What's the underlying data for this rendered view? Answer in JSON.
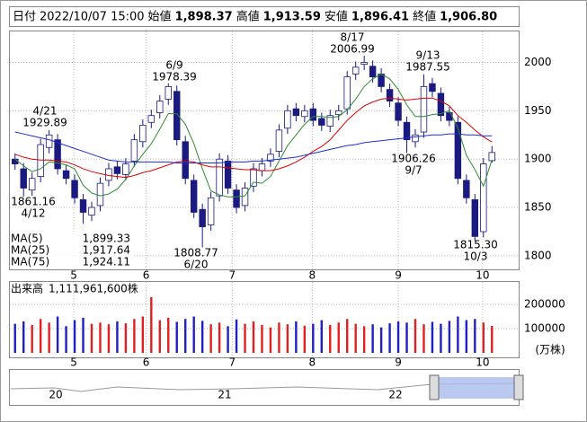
{
  "header": {
    "date_label": "日付",
    "datetime": "2022/10/07 15:00",
    "items": [
      {
        "label": "始値",
        "value": "1,898.37",
        "color": "#000000"
      },
      {
        "label": "高値",
        "value": "1,913.59",
        "color": "#e00000"
      },
      {
        "label": "安値",
        "value": "1,896.41",
        "color": "#008000"
      },
      {
        "label": "終値",
        "value": "1,906.80",
        "color": "#000000"
      }
    ]
  },
  "chart_data": [
    {
      "type": "candlestick",
      "up_color": "#ffffff",
      "down_color": "#1a1a80",
      "edge_color": "#1a1a80",
      "open": [
        1900,
        1890,
        1868,
        1882,
        1912,
        1920,
        1888,
        1878,
        1858,
        1842,
        1852,
        1878,
        1892,
        1884,
        1898,
        1918,
        1938,
        1948,
        1962,
        1970,
        1918,
        1878,
        1848,
        1832,
        1862,
        1898,
        1868,
        1852,
        1872,
        1888,
        1898,
        1908,
        1932,
        1952,
        1944,
        1952,
        1942,
        1934,
        1946,
        1952,
        1988,
        1998,
        1996,
        1988,
        1972,
        1958,
        1938,
        1918,
        1928,
        1978,
        1968,
        1948,
        1938,
        1878,
        1858,
        1825,
        1898.37
      ],
      "high": [
        1906,
        1896,
        1886,
        1921,
        1929.89,
        1926,
        1894,
        1884,
        1864,
        1856,
        1881,
        1896,
        1898,
        1901,
        1926,
        1941,
        1951,
        1966,
        1978.39,
        1976,
        1924,
        1884,
        1854,
        1866,
        1906,
        1904,
        1874,
        1876,
        1896,
        1901,
        1911,
        1936,
        1956,
        1958,
        1956,
        1958,
        1948,
        1951,
        1956,
        1991,
        2001,
        2006.99,
        2002,
        1994,
        1978,
        1964,
        1944,
        1931,
        1987.55,
        1984,
        1974,
        1954,
        1944,
        1884,
        1864,
        1901,
        1913.59
      ],
      "low": [
        1889,
        1861.16,
        1862,
        1876,
        1906,
        1884,
        1874,
        1854,
        1833.31,
        1836,
        1846,
        1872,
        1879,
        1878,
        1892,
        1912,
        1932,
        1942,
        1956,
        1914,
        1874,
        1839,
        1808.77,
        1826,
        1856,
        1864,
        1844,
        1846,
        1866,
        1882,
        1892,
        1902,
        1926,
        1939,
        1938,
        1934,
        1929,
        1928,
        1940,
        1946,
        1982,
        1992,
        1979,
        1969,
        1954,
        1934,
        1906.26,
        1912,
        1922,
        1964,
        1939,
        1934,
        1874,
        1854,
        1815.3,
        1819,
        1896.41
      ],
      "close": [
        1895,
        1870,
        1880,
        1915,
        1925,
        1890,
        1880,
        1860,
        1845,
        1850,
        1875,
        1890,
        1885,
        1895,
        1920,
        1935,
        1945,
        1960,
        1975,
        1920,
        1880,
        1845,
        1830,
        1860,
        1900,
        1870,
        1850,
        1870,
        1890,
        1895,
        1905,
        1930,
        1950,
        1945,
        1950,
        1940,
        1935,
        1945,
        1950,
        1985,
        1995,
        2000,
        1985,
        1975,
        1960,
        1940,
        1920,
        1925,
        1975,
        1970,
        1945,
        1940,
        1880,
        1860,
        1820,
        1895,
        1906.8
      ],
      "series": [
        {
          "name": "MA(5)",
          "color": "#2e8b2e",
          "last_label": "1,899.33",
          "values": [
            1900,
            1893,
            1887,
            1890,
            1897,
            1896,
            1894,
            1890,
            1873,
            1865,
            1862,
            1864,
            1869,
            1879,
            1893,
            1905,
            1916,
            1931,
            1947,
            1947,
            1936,
            1916,
            1890,
            1867,
            1863,
            1861,
            1861,
            1862,
            1876,
            1875,
            1882,
            1898,
            1914,
            1925,
            1936,
            1944,
            1944,
            1943,
            1944,
            1951,
            1962,
            1975,
            1983,
            1988,
            1983,
            1972,
            1956,
            1944,
            1944,
            1946,
            1947,
            1950,
            1932,
            1904,
            1889,
            1872,
            1899.33
          ]
        },
        {
          "name": "MA(25)",
          "color": "#e00000",
          "last_label": "1,917.64",
          "values": [
            1905,
            1902,
            1900,
            1899,
            1899,
            1898,
            1897,
            1894,
            1890,
            1887,
            1885,
            1883,
            1882,
            1881,
            1883,
            1886,
            1888,
            1891,
            1894,
            1897,
            1898,
            1897,
            1894,
            1892,
            1892,
            1891,
            1890,
            1889,
            1889,
            1888,
            1888,
            1890,
            1893,
            1897,
            1902,
            1908,
            1913,
            1920,
            1930,
            1940,
            1948,
            1955,
            1959,
            1962,
            1963,
            1962,
            1961,
            1962,
            1963,
            1963,
            1960,
            1955,
            1945,
            1938,
            1930,
            1923,
            1917.64
          ]
        },
        {
          "name": "MA(75)",
          "color": "#1f2fd0",
          "last_label": "1,924.11",
          "values": [
            1928,
            1926,
            1924,
            1922,
            1920,
            1917,
            1914,
            1911,
            1908,
            1905,
            1902,
            1899,
            1898,
            1897,
            1897,
            1897,
            1897,
            1897,
            1897,
            1896,
            1896,
            1896,
            1896,
            1896,
            1896,
            1897,
            1897,
            1897,
            1898,
            1898,
            1899,
            1900,
            1901,
            1902,
            1904,
            1906,
            1908,
            1910,
            1912,
            1914,
            1915,
            1917,
            1918,
            1919,
            1920,
            1921,
            1922,
            1923,
            1924,
            1925,
            1925,
            1926,
            1926,
            1925,
            1925,
            1924,
            1924.11
          ]
        }
      ],
      "ylim": [
        1786,
        2032
      ],
      "yticks": [
        1800,
        1850,
        1900,
        1950,
        2000
      ],
      "xticks": [
        {
          "value": 6.9,
          "label": "5"
        },
        {
          "value": 15.4,
          "label": "6"
        },
        {
          "value": 25.5,
          "label": "7"
        },
        {
          "value": 34.9,
          "label": "8"
        },
        {
          "value": 45.0,
          "label": "9"
        },
        {
          "value": 54.9,
          "label": "10"
        }
      ],
      "grid": true,
      "annotations": [
        {
          "date": "4/21",
          "price": "1929.89"
        },
        {
          "date": "4/12",
          "price": "1861.16"
        },
        {
          "date": "6/9",
          "price": "1978.39"
        },
        {
          "date": "6/20",
          "price": "1808.77"
        },
        {
          "date": "8/17",
          "price": "2006.99"
        },
        {
          "date": "9/13",
          "price": "1987.55"
        },
        {
          "date": "9/7",
          "price": "1906.26"
        },
        {
          "date": "10/3",
          "price": "1815.30"
        }
      ]
    },
    {
      "type": "bar",
      "title": "出来高",
      "total": "1,111,961,600株",
      "unit": "(万株)",
      "up_color": "#e02020",
      "down_color": "#2020c0",
      "values": [
        120000,
        130000,
        115000,
        140000,
        125000,
        150000,
        110000,
        135000,
        145000,
        120000,
        125000,
        118000,
        130000,
        122000,
        140000,
        150000,
        230000,
        135000,
        145000,
        128000,
        140000,
        150000,
        132000,
        118000,
        125000,
        110000,
        138000,
        120000,
        130000,
        115000,
        105000,
        125000,
        118000,
        130000,
        112000,
        120000,
        135000,
        115000,
        125000,
        140000,
        120000,
        110000,
        118000,
        105000,
        122000,
        130000,
        125000,
        140000,
        118000,
        128000,
        120000,
        132000,
        150000,
        135000,
        140000,
        125000,
        111196.16
      ],
      "ylim": [
        0,
        289000
      ],
      "yticks": [
        100000,
        200000
      ],
      "xticks": [
        {
          "value": 6.9,
          "label": "5"
        },
        {
          "value": 15.4,
          "label": "6"
        },
        {
          "value": 25.5,
          "label": "7"
        },
        {
          "value": 34.9,
          "label": "8"
        },
        {
          "value": 45.0,
          "label": "9"
        },
        {
          "value": 54.9,
          "label": "10"
        }
      ],
      "grid": true
    }
  ],
  "navigator": {
    "labels": [
      "20",
      "21",
      "22"
    ]
  }
}
